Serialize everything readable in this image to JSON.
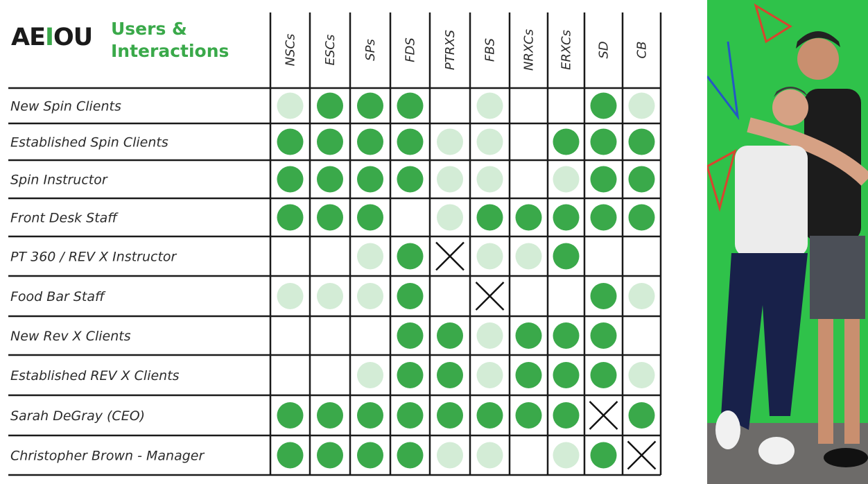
{
  "logo": {
    "pre": "AE",
    "accent": "I",
    "post": "OU"
  },
  "title": {
    "line1": "Users &",
    "line2": "Interactions"
  },
  "colors": {
    "strong": "#3aa94a",
    "weak": "#d3ecd6",
    "grid": "#1a1a1a",
    "cross": "#111111"
  },
  "legend_note": "cell values: strong = dark green dot, weak = light green dot, none = empty, x = cross",
  "columns": [
    "NSCs",
    "ESCs",
    "SPs",
    "FDS",
    "PTRXS",
    "FBS",
    "NRXCs",
    "ERXCs",
    "SD",
    "CB"
  ],
  "rows": [
    {
      "label": "New Spin Clients",
      "cells": [
        "weak",
        "strong",
        "strong",
        "strong",
        "none",
        "weak",
        "none",
        "none",
        "strong",
        "weak"
      ]
    },
    {
      "label": "Established Spin Clients",
      "cells": [
        "strong",
        "strong",
        "strong",
        "strong",
        "weak",
        "weak",
        "none",
        "strong",
        "strong",
        "strong"
      ]
    },
    {
      "label": "Spin Instructor",
      "cells": [
        "strong",
        "strong",
        "strong",
        "strong",
        "weak",
        "weak",
        "none",
        "weak",
        "strong",
        "strong"
      ]
    },
    {
      "label": "Front Desk Staff",
      "cells": [
        "strong",
        "strong",
        "strong",
        "none",
        "weak",
        "strong",
        "strong",
        "strong",
        "strong",
        "strong"
      ]
    },
    {
      "label": "PT 360 / REV X Instructor",
      "cells": [
        "none",
        "none",
        "weak",
        "strong",
        "x",
        "weak",
        "weak",
        "strong",
        "none",
        "none"
      ]
    },
    {
      "label": "Food Bar Staff",
      "cells": [
        "weak",
        "weak",
        "weak",
        "strong",
        "none",
        "x",
        "none",
        "none",
        "strong",
        "weak"
      ]
    },
    {
      "label": "New Rev X Clients",
      "cells": [
        "none",
        "none",
        "none",
        "strong",
        "strong",
        "weak",
        "strong",
        "strong",
        "strong",
        "none"
      ]
    },
    {
      "label": "Established REV X Clients",
      "cells": [
        "none",
        "none",
        "weak",
        "strong",
        "strong",
        "weak",
        "strong",
        "strong",
        "strong",
        "weak"
      ]
    },
    {
      "label": "Sarah DeGray (CEO)",
      "cells": [
        "strong",
        "strong",
        "strong",
        "strong",
        "strong",
        "strong",
        "strong",
        "strong",
        "x",
        "strong"
      ]
    },
    {
      "label": "Christopher Brown - Manager",
      "cells": [
        "strong",
        "strong",
        "strong",
        "strong",
        "weak",
        "weak",
        "none",
        "weak",
        "strong",
        "x"
      ]
    }
  ],
  "photo": {
    "kind": "photo",
    "description_icon": "person-photo-icon"
  }
}
